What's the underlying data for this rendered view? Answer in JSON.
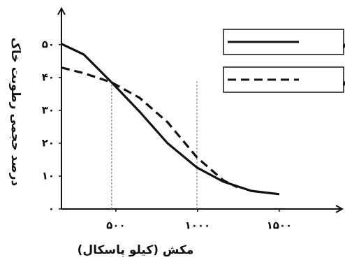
{
  "chart_data": {
    "type": "line",
    "y_label": "درصد حجمی رطوبت خاک",
    "x_label": "مکش (کیلو پاسکال)",
    "xlim": [
      167,
      1885
    ],
    "ylim": [
      0,
      61
    ],
    "xticks": [
      {
        "value": 500,
        "label": "۵۰۰"
      },
      {
        "value": 1000,
        "label": "۱۰۰۰"
      },
      {
        "value": 1500,
        "label": "۱۵۰۰"
      }
    ],
    "yticks": [
      {
        "value": 0,
        "label": "۰"
      },
      {
        "value": 10,
        "label": "۱۰"
      },
      {
        "value": 20,
        "label": "۲۰"
      },
      {
        "value": 30,
        "label": "۳۰"
      },
      {
        "value": 40,
        "label": "۴۰"
      },
      {
        "value": 50,
        "label": "۵۰"
      }
    ],
    "vlines": [
      474,
      996
    ],
    "series": [
      {
        "name": "تراکم",
        "color": "#111111",
        "dash": false,
        "x": [
          167,
          303,
          474,
          645,
          816,
          996,
          1158,
          1329,
          1500
        ],
        "values": [
          50.2,
          47,
          38.5,
          29.6,
          20,
          12.6,
          8.3,
          5.5,
          4.5
        ]
      },
      {
        "name": "راکم",
        "color": "#111111",
        "dash": true,
        "x": [
          167,
          303,
          474,
          645,
          816,
          996,
          1158,
          1244
        ],
        "values": [
          43,
          41.3,
          38.5,
          33.8,
          26.4,
          15.7,
          8.7,
          6.6
        ]
      }
    ]
  }
}
